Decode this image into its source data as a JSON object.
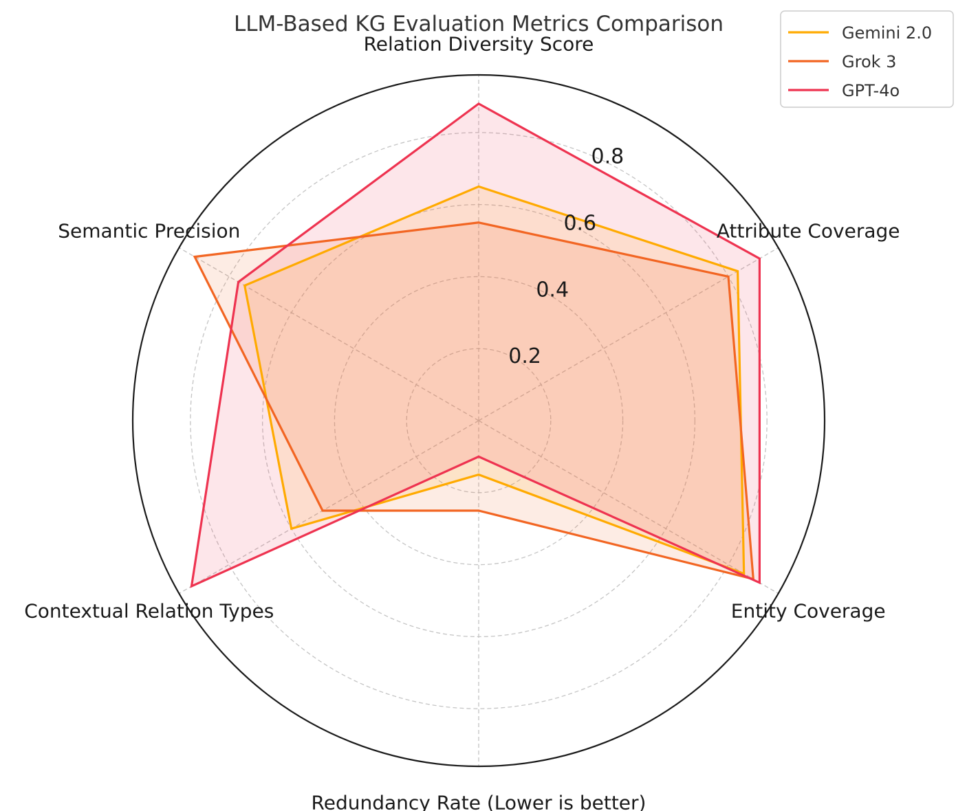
{
  "chart_data": {
    "type": "radar",
    "title": "LLM-Based KG Evaluation Metrics Comparison",
    "axes": [
      "Relation Diversity Score",
      "Attribute Coverage",
      "Entity Coverage",
      "Redundancy Rate (Lower is better)",
      "Contextual Relation Types",
      "Semantic Precision"
    ],
    "radial_ticks": [
      0.2,
      0.4,
      0.6,
      0.8
    ],
    "radial_tick_labels": [
      "0.2",
      "0.4",
      "0.6",
      "0.8"
    ],
    "r_range": [
      0,
      0.96
    ],
    "grid": true,
    "legend_position": "top-right",
    "series": [
      {
        "name": "Gemini 2.0",
        "color": "#FFAA00",
        "values": [
          0.65,
          0.83,
          0.85,
          0.15,
          0.6,
          0.75
        ]
      },
      {
        "name": "Grok 3",
        "color": "#F26522",
        "values": [
          0.55,
          0.8,
          0.88,
          0.25,
          0.5,
          0.91
        ]
      },
      {
        "name": "GPT-4o",
        "color": "#EE3350",
        "values": [
          0.88,
          0.9,
          0.9,
          0.1,
          0.92,
          0.77
        ]
      }
    ]
  }
}
